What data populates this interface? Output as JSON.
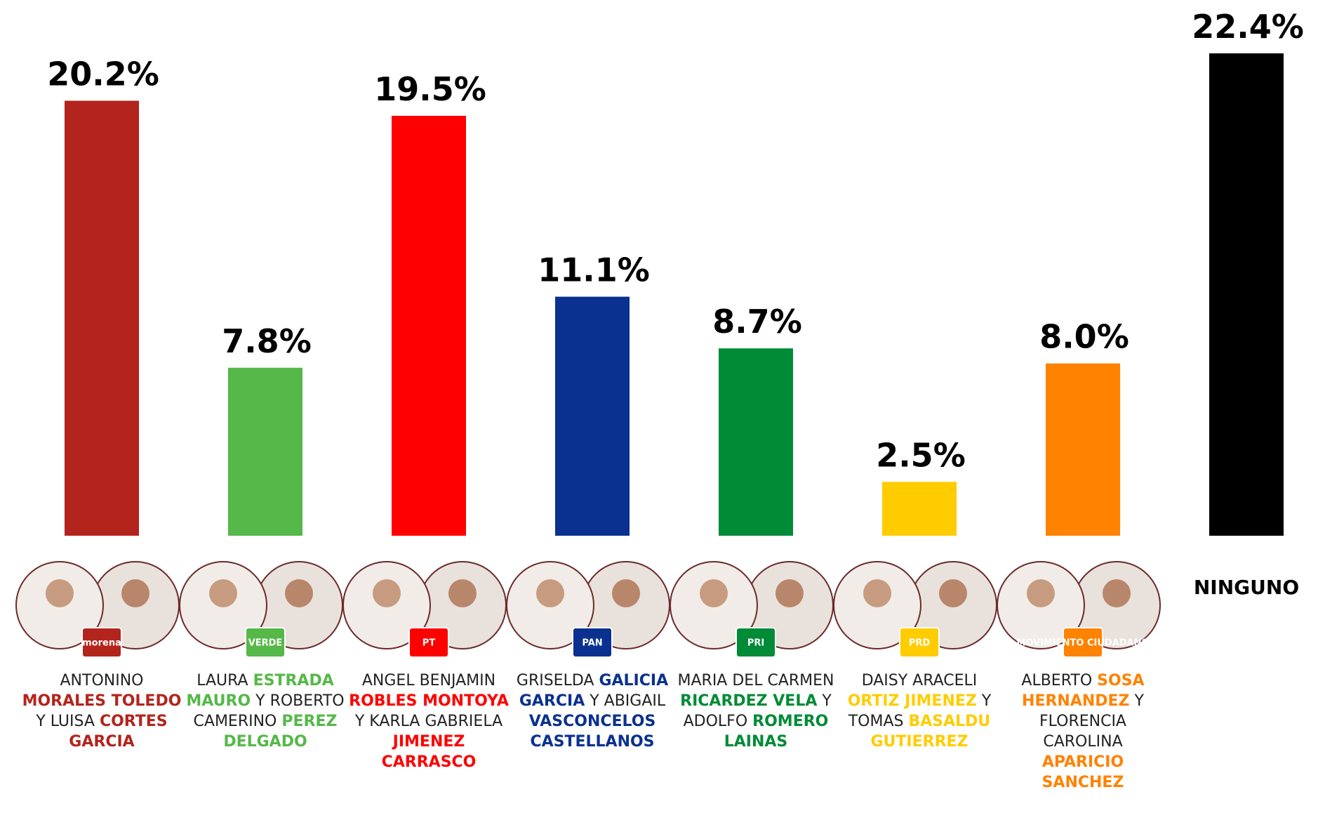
{
  "chart_data": {
    "type": "bar",
    "categories": [
      [
        "ANTONINO",
        "MORALES TOLEDO",
        "Y LUISA",
        "CORTES GARCIA"
      ],
      [
        "LAURA",
        "ESTRADA MAURO",
        "Y ROBERTO CAMERINO",
        "PEREZ DELGADO"
      ],
      [
        "ANGEL BENJAMIN",
        "ROBLES MONTOYA",
        "Y KARLA GABRIELA",
        "JIMENEZ CARRASCO"
      ],
      [
        "GRISELDA",
        "GALICIA GARCIA",
        "Y ABIGAIL",
        "VASCONCELOS CASTELLANOS"
      ],
      [
        "MARIA DEL CARMEN",
        "RICARDEZ VELA",
        "Y ADOLFO",
        "ROMERO LAINAS"
      ],
      [
        "DAISY ARACELI",
        "ORTIZ JIMENEZ",
        "Y TOMAS",
        "BASALDU GUTIERREZ"
      ],
      [
        "ALBERTO",
        "SOSA HERNANDEZ",
        "Y FLORENCIA CAROLINA",
        "APARICIO SANCHEZ"
      ],
      [
        "NINGUNO"
      ]
    ],
    "party_logos": [
      "morena",
      "VERDE",
      "PT",
      "PAN",
      "PRI",
      "PRD",
      "MOVIMIENTO CIUDADANO",
      null
    ],
    "values": [
      20.2,
      7.8,
      19.5,
      11.1,
      8.7,
      2.5,
      8.0,
      22.4
    ],
    "value_labels": [
      "20.2%",
      "7.8%",
      "19.5%",
      "11.1%",
      "8.7%",
      "2.5%",
      "8.0%",
      "22.4%"
    ],
    "colors": [
      "#b3241d",
      "#55b848",
      "#ff0000",
      "#0a318f",
      "#008b36",
      "#ffcc00",
      "#ff8200",
      "#000000"
    ]
  }
}
